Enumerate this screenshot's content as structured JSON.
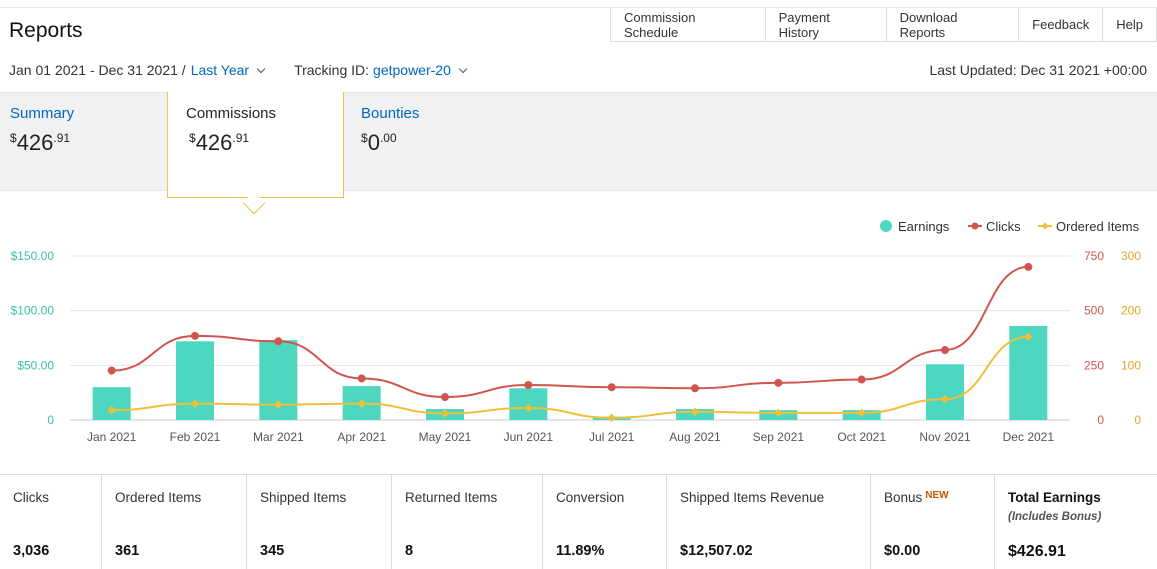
{
  "header": {
    "title": "Reports",
    "tabs": [
      "Commission Schedule",
      "Payment History",
      "Download Reports",
      "Feedback",
      "Help"
    ]
  },
  "filters": {
    "date_range": "Jan 01 2021 - Dec 31 2021 /",
    "period": "Last Year",
    "tracking_label": "Tracking ID:",
    "tracking_id": "getpower-20",
    "last_updated": "Last Updated: Dec 31 2021 +00:00"
  },
  "summary_cards": [
    {
      "label": "Summary",
      "symbol": "$",
      "whole": "426",
      "cents": ".91"
    },
    {
      "label": "Commissions",
      "symbol": "$",
      "whole": "426",
      "cents": ".91"
    },
    {
      "label": "Bounties",
      "symbol": "$",
      "whole": "0",
      "cents": ".00"
    }
  ],
  "colors": {
    "earnings": "#4dd6c0",
    "clicks": "#d0554e",
    "ordered": "#f0c03a",
    "link": "#0066c0",
    "highlight": "#f0c14b"
  },
  "chart_data": {
    "type": "bar",
    "categories": [
      "Jan 2021",
      "Feb 2021",
      "Mar 2021",
      "Apr 2021",
      "May 2021",
      "Jun 2021",
      "Jul 2021",
      "Aug 2021",
      "Sep 2021",
      "Oct 2021",
      "Nov 2021",
      "Dec 2021"
    ],
    "series": [
      {
        "name": "Earnings",
        "type": "bar",
        "axis": "left",
        "values": [
          30,
          72,
          73,
          31,
          10,
          29,
          3,
          10,
          9,
          9,
          51,
          86
        ]
      },
      {
        "name": "Clicks",
        "type": "line",
        "axis": "right1",
        "values": [
          226,
          385,
          360,
          190,
          105,
          160,
          150,
          145,
          170,
          185,
          320,
          700
        ]
      },
      {
        "name": "Ordered Items",
        "type": "line",
        "axis": "right2",
        "values": [
          18,
          30,
          28,
          30,
          12,
          22,
          4,
          15,
          13,
          13,
          38,
          152
        ]
      }
    ],
    "y_left": {
      "ticks": [
        "$150.00",
        "$100.00",
        "$50.00",
        "0"
      ],
      "range": [
        0,
        150
      ]
    },
    "y_right1": {
      "ticks": [
        "750",
        "500",
        "250",
        "0"
      ],
      "range": [
        0,
        750
      ]
    },
    "y_right2": {
      "ticks": [
        "300",
        "200",
        "100",
        "0"
      ],
      "range": [
        0,
        300
      ]
    },
    "legend_position": "top-right",
    "grid": true
  },
  "stats": [
    {
      "label": "Clicks",
      "value": "3,036"
    },
    {
      "label": "Ordered Items",
      "value": "361"
    },
    {
      "label": "Shipped Items",
      "value": "345"
    },
    {
      "label": "Returned Items",
      "value": "8"
    },
    {
      "label": "Conversion",
      "value": "11.89%"
    },
    {
      "label": "Shipped Items Revenue",
      "value": "$12,507.02"
    },
    {
      "label": "Bonus",
      "badge": "NEW",
      "value": "$0.00"
    },
    {
      "label": "Total Earnings",
      "sub": "(Includes Bonus)",
      "value": "$426.91"
    }
  ]
}
